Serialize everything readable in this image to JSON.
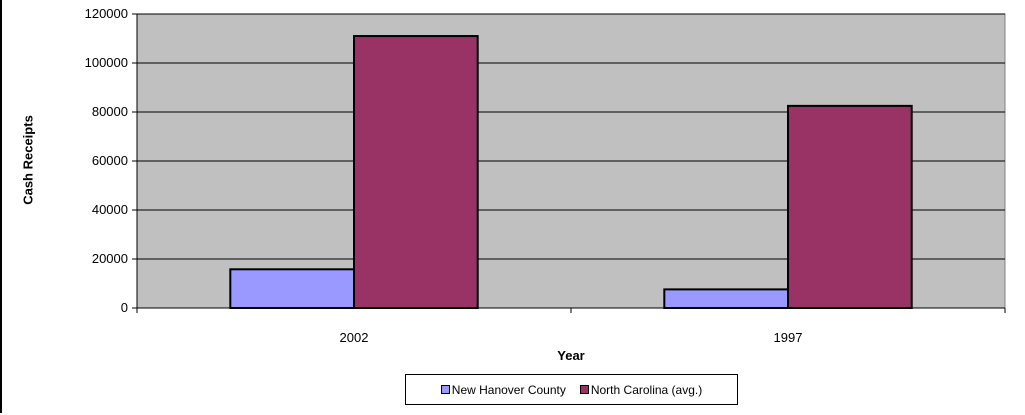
{
  "chart_data": {
    "type": "bar",
    "categories": [
      "2002",
      "1997"
    ],
    "series": [
      {
        "name": "New Hanover County",
        "values": [
          15800,
          7600
        ],
        "color": "#9999ff"
      },
      {
        "name": "North Carolina (avg.)",
        "values": [
          111000,
          82500
        ],
        "color": "#993366"
      }
    ],
    "xlabel": "Year",
    "ylabel": "Cash Receipts",
    "ylim": [
      0,
      120000
    ],
    "yticks": [
      0,
      20000,
      40000,
      60000,
      80000,
      100000,
      120000
    ],
    "plot_background": "#c0c0c0",
    "grid": true,
    "legend_position": "bottom"
  }
}
